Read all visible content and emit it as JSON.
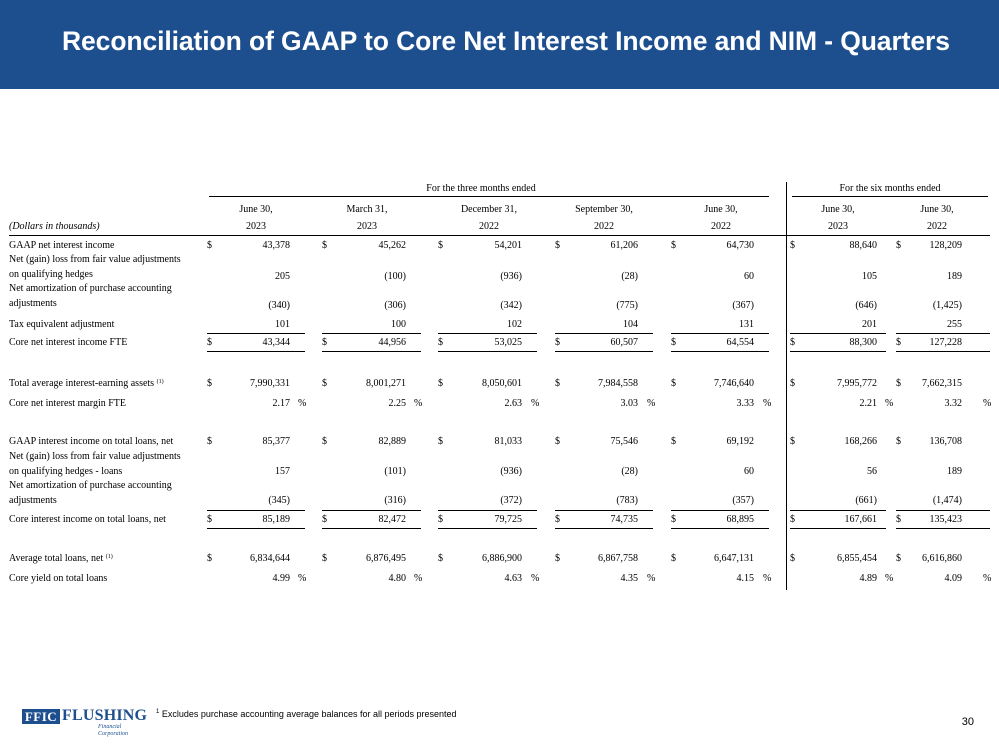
{
  "title": "Reconciliation of GAAP to Core Net Interest Income and NIM - Quarters",
  "header": {
    "group_three_months": "For the three months ended",
    "group_six_months": "For the six months ended",
    "units_label": "(Dollars in thousands)",
    "columns": [
      {
        "date": "June 30,",
        "year": "2023"
      },
      {
        "date": "March 31,",
        "year": "2023"
      },
      {
        "date": "December 31,",
        "year": "2022"
      },
      {
        "date": "September 30,",
        "year": "2022"
      },
      {
        "date": "June 30,",
        "year": "2022"
      },
      {
        "date": "June 30,",
        "year": "2023"
      },
      {
        "date": "June 30,",
        "year": "2022"
      }
    ]
  },
  "rows": [
    {
      "label": "GAAP net interest income",
      "dollar": "$",
      "values": [
        "43,378",
        "45,262",
        "54,201",
        "61,206",
        "64,730",
        "88,640",
        "128,209"
      ]
    },
    {
      "label": "Net (gain) loss from fair value adjustments",
      "label2": "on qualifying hedges",
      "values": [
        "205",
        "(100)",
        "(936)",
        "(28)",
        "60",
        "105",
        "189"
      ]
    },
    {
      "label": "Net amortization of purchase accounting",
      "label2": "adjustments",
      "values": [
        "(340)",
        "(306)",
        "(342)",
        "(775)",
        "(367)",
        "(646)",
        "(1,425)"
      ]
    },
    {
      "label": "Tax equivalent adjustment",
      "values": [
        "101",
        "100",
        "102",
        "104",
        "131",
        "201",
        "255"
      ]
    },
    {
      "label": "Core net interest income FTE",
      "dollar": "$",
      "values": [
        "43,344",
        "44,956",
        "53,025",
        "60,507",
        "64,554",
        "88,300",
        "127,228"
      ]
    },
    {
      "label": "Total average interest-earning assets",
      "sup": "(1)",
      "dollar": "$",
      "values": [
        "7,990,331",
        "8,001,271",
        "8,050,601",
        "7,984,558",
        "7,746,640",
        "7,995,772",
        "7,662,315"
      ]
    },
    {
      "label": "Core net interest margin FTE",
      "pct": "%",
      "values": [
        "2.17",
        "2.25",
        "2.63",
        "3.03",
        "3.33",
        "2.21",
        "3.32"
      ]
    },
    {
      "label": "GAAP interest income on total loans, net",
      "dollar": "$",
      "values": [
        "85,377",
        "82,889",
        "81,033",
        "75,546",
        "69,192",
        "168,266",
        "136,708"
      ]
    },
    {
      "label": "Net (gain) loss from fair value adjustments",
      "label2": "on qualifying hedges - loans",
      "values": [
        "157",
        "(101)",
        "(936)",
        "(28)",
        "60",
        "56",
        "189"
      ]
    },
    {
      "label": "Net amortization of purchase accounting",
      "label2": "adjustments",
      "values": [
        "(345)",
        "(316)",
        "(372)",
        "(783)",
        "(357)",
        "(661)",
        "(1,474)"
      ]
    },
    {
      "label": "Core interest income on total loans, net",
      "dollar": "$",
      "values": [
        "85,189",
        "82,472",
        "79,725",
        "74,735",
        "68,895",
        "167,661",
        "135,423"
      ]
    },
    {
      "label": "Average total loans, net",
      "sup": "(1)",
      "dollar": "$",
      "values": [
        "6,834,644",
        "6,876,495",
        "6,886,900",
        "6,867,758",
        "6,647,131",
        "6,855,454",
        "6,616,860"
      ]
    },
    {
      "label": "Core yield on total loans",
      "pct": "%",
      "values": [
        "4.99",
        "4.80",
        "4.63",
        "4.35",
        "4.15",
        "4.89",
        "4.09"
      ]
    }
  ],
  "footer": {
    "logo_box": "FFIC",
    "logo_name": "FLUSHING",
    "logo_sub": "Financial Corporation",
    "footnote_mark": "1",
    "footnote": "Excludes purchase accounting average balances for all periods presented",
    "page_number": "30"
  },
  "colors": {
    "banner": "#1d4f8f",
    "title_text": "#ffffff",
    "logo": "#1d4f8f"
  }
}
